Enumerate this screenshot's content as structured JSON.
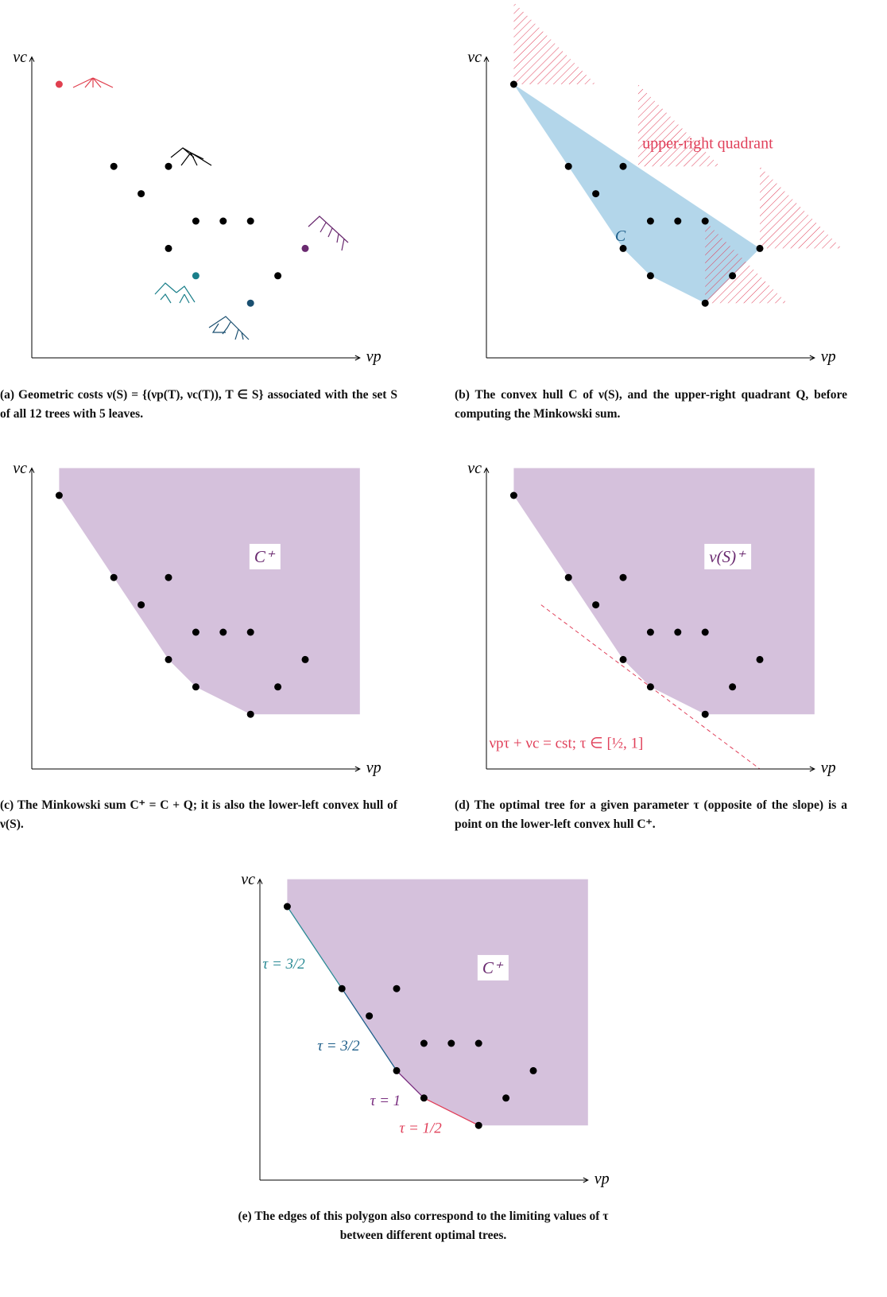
{
  "axis_labels": {
    "x": "νp",
    "y": "νc"
  },
  "xlim": [
    0,
    12
  ],
  "ylim": [
    0,
    11
  ],
  "points": {
    "x": [
      1,
      3,
      5,
      4,
      6,
      7,
      8,
      5,
      10,
      6,
      9,
      8
    ],
    "y": [
      10,
      7,
      7,
      6,
      5,
      5,
      5,
      4,
      4,
      3,
      3,
      2
    ],
    "colors": [
      "#e0404f",
      "#000000",
      "#000000",
      "#000000",
      "#000000",
      "#000000",
      "#000000",
      "#000000",
      "#6a2a70",
      "#1a7f8a",
      "#000000",
      "#1a4f70"
    ]
  },
  "hull_color": "#b3d6ea",
  "region_color": "#d5c1dc",
  "hatch_color": "#e0405a",
  "panels": [
    {
      "caption": "(a) Geometric costs ν(S) = {(νp(T), νc(T)), T ∈ S} associated with the set S of all 12 trees with 5 leaves."
    },
    {
      "caption": "(b) The convex hull C of ν(S), and the upper-right quadrant Q, before computing the Minkowski sum.",
      "hull_label": "C",
      "quadrant_label": "upper-right quadrant"
    },
    {
      "caption": "(c) The Minkowski sum C⁺ = C + Q; it is also the lower-left convex hull of ν(S).",
      "region_label": "C⁺"
    },
    {
      "caption": "(d) The optimal tree for a given parameter τ (opposite of the slope) is a point on the lower-left convex hull C⁺.",
      "region_label": "ν(S)⁺",
      "line_label": "νpτ + νc = cst; τ ∈ [½, 1]"
    },
    {
      "caption": "(e) The edges of this polygon also correspond to the limiting values of τ between different optimal trees.",
      "region_label": "C⁺",
      "edge_labels": [
        {
          "text": "τ = 3/2",
          "color": "#2a8a95"
        },
        {
          "text": "τ = 3/2",
          "color": "#1f5f8a"
        },
        {
          "text": "τ = 1",
          "color": "#7a2f80"
        },
        {
          "text": "τ = 1/2",
          "color": "#e0405a"
        }
      ]
    }
  ]
}
